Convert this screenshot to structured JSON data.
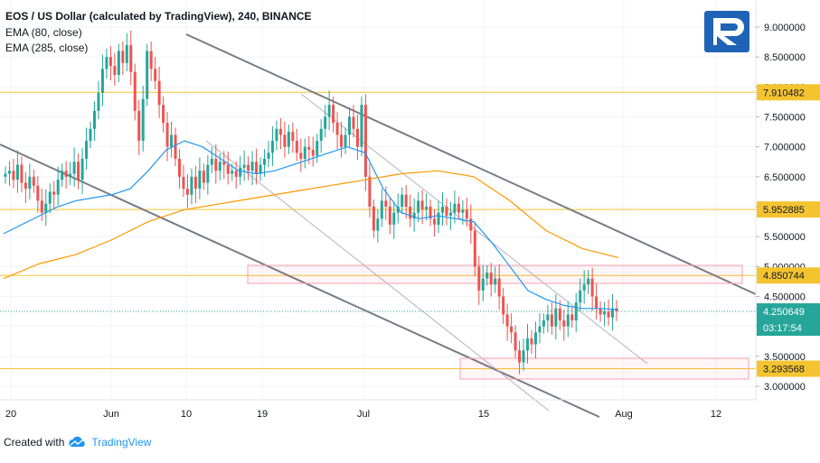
{
  "header": {
    "title": "EOS / US Dollar (calculated by TradingView), 240, BINANCE",
    "indicators": [
      "EMA (80, close)",
      "EMA (285, close)"
    ]
  },
  "footer": {
    "created_with": "Created with",
    "brand": "TradingView"
  },
  "chart_data": {
    "type": "candlestick",
    "title": "EOS / US Dollar (calculated by TradingView), 240, BINANCE",
    "y_axis": {
      "ticks": [
        "9.000000",
        "8.500000",
        "8.000000",
        "7.500000",
        "7.000000",
        "6.500000",
        "6.000000",
        "5.500000",
        "5.000000",
        "4.500000",
        "4.000000",
        "3.500000",
        "3.000000"
      ],
      "ylim": [
        2.85,
        9.25
      ]
    },
    "x_axis": {
      "ticks": [
        "20",
        "Jun",
        "10",
        "19",
        "Jul",
        "15",
        "Aug",
        "12"
      ]
    },
    "price_levels": [
      {
        "value": 7.910482,
        "label": "7.910482",
        "color": "#f4c430"
      },
      {
        "value": 5.952885,
        "label": "5.952885",
        "color": "#f4c430"
      },
      {
        "value": 4.850744,
        "label": "4.850744",
        "color": "#f4c430"
      },
      {
        "value": 3.293568,
        "label": "3.293568",
        "color": "#f4c430"
      }
    ],
    "last_price": {
      "value": 4.250649,
      "label": "4.250649",
      "countdown": "03:17:54",
      "color": "#26a69a"
    },
    "series": [
      {
        "name": "EMA (80, close)",
        "color": "#2196f3"
      },
      {
        "name": "EMA (285, close)",
        "color": "#ff9800"
      }
    ],
    "candles_close": [
      6.55,
      6.6,
      6.45,
      6.7,
      6.4,
      6.3,
      6.5,
      6.35,
      6.1,
      5.9,
      6.05,
      6.25,
      6.2,
      6.45,
      6.6,
      6.5,
      6.55,
      6.75,
      6.45,
      6.8,
      7.1,
      7.3,
      7.6,
      7.9,
      8.3,
      8.5,
      8.35,
      8.2,
      8.6,
      8.4,
      8.7,
      8.25,
      7.6,
      7.1,
      7.8,
      8.6,
      8.3,
      8.1,
      7.7,
      7.4,
      7.0,
      7.2,
      6.8,
      6.5,
      6.3,
      6.2,
      6.5,
      6.3,
      6.6,
      6.4,
      6.7,
      6.8,
      6.6,
      6.75,
      6.7,
      6.55,
      6.6,
      6.5,
      6.65,
      6.7,
      6.6,
      6.75,
      6.55,
      6.7,
      6.8,
      6.9,
      7.1,
      7.3,
      7.2,
      7.0,
      7.25,
      7.1,
      6.9,
      6.8,
      7.0,
      6.95,
      6.85,
      7.1,
      7.3,
      7.5,
      7.7,
      7.4,
      7.2,
      7.0,
      7.2,
      7.5,
      7.3,
      7.0,
      7.7,
      6.5,
      6.0,
      5.6,
      5.8,
      6.1,
      6.0,
      5.7,
      5.9,
      6.0,
      6.2,
      6.0,
      5.8,
      5.9,
      6.1,
      5.95,
      6.0,
      5.8,
      5.7,
      5.9,
      6.0,
      5.85,
      5.9,
      6.05,
      5.9,
      5.95,
      5.8,
      5.6,
      5.0,
      4.6,
      4.8,
      4.9,
      4.7,
      4.8,
      4.5,
      4.2,
      4.0,
      3.9,
      3.6,
      3.4,
      3.6,
      3.8,
      3.7,
      3.9,
      4.0,
      4.1,
      4.2,
      4.0,
      4.3,
      4.1,
      4.0,
      4.2,
      4.1,
      4.4,
      4.6,
      4.7,
      4.8,
      4.5,
      4.3,
      4.2,
      4.25,
      4.15,
      4.3,
      4.25
    ],
    "ema80_close": [
      5.55,
      5.7,
      5.85,
      6.0,
      6.1,
      6.15,
      6.2,
      6.3,
      6.6,
      6.95,
      7.1,
      7.0,
      6.8,
      6.6,
      6.55,
      6.6,
      6.7,
      6.8,
      6.9,
      7.0,
      6.9,
      6.3,
      5.9,
      5.8,
      5.85,
      5.8,
      5.75,
      5.4,
      5.0,
      4.6,
      4.45,
      4.35,
      4.3,
      4.3,
      4.28
    ],
    "ema285_close": [
      4.8,
      5.05,
      5.2,
      5.45,
      5.75,
      5.95,
      6.05,
      6.15,
      6.25,
      6.35,
      6.45,
      6.55,
      6.6,
      6.5,
      6.1,
      5.6,
      5.3,
      5.15
    ]
  }
}
